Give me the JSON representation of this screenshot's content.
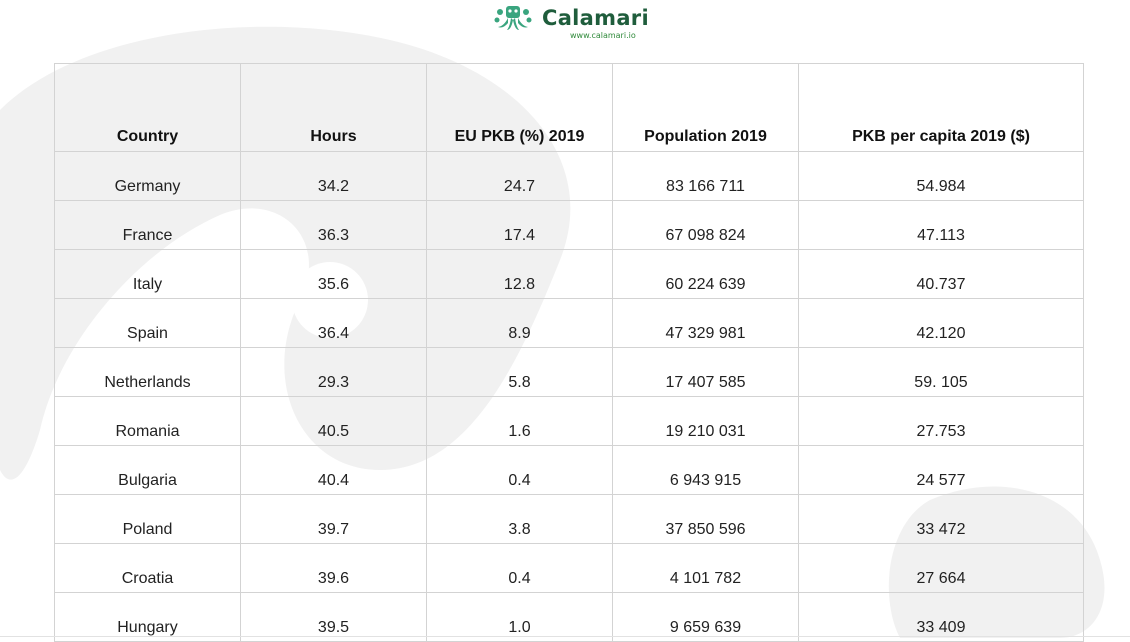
{
  "brand": {
    "name": "Calamari",
    "url": "www.calamari.io",
    "colors": {
      "primary": "#1f5d3c",
      "accent": "#2f8a3a",
      "mark": "#3aa57f"
    },
    "logo_icon": "octopus-logo-icon"
  },
  "table": {
    "headers": [
      "Country",
      "Hours",
      "EU PKB (%) 2019",
      "Population 2019",
      "PKB per capita 2019 ($)"
    ],
    "rows": [
      [
        "Germany",
        "34.2",
        "24.7",
        "83 166 711",
        "54.984"
      ],
      [
        "France",
        "36.3",
        "17.4",
        "67 098 824",
        "47.113"
      ],
      [
        "Italy",
        "35.6",
        "12.8",
        "60 224 639",
        "40.737"
      ],
      [
        "Spain",
        "36.4",
        "8.9",
        "47 329 981",
        "42.120"
      ],
      [
        "Netherlands",
        "29.3",
        "5.8",
        "17 407 585",
        "59. 105"
      ],
      [
        "Romania",
        "40.5",
        "1.6",
        "19 210 031",
        "27.753"
      ],
      [
        "Bulgaria",
        "40.4",
        "0.4",
        "6 943 915",
        "24 577"
      ],
      [
        "Poland",
        "39.7",
        "3.8",
        "37 850 596",
        "33 472"
      ],
      [
        "Croatia",
        "39.6",
        "0.4",
        "4 101 782",
        "27 664"
      ],
      [
        "Hungary",
        "39.5",
        "1.0",
        "9 659 639",
        "33 409"
      ]
    ]
  }
}
